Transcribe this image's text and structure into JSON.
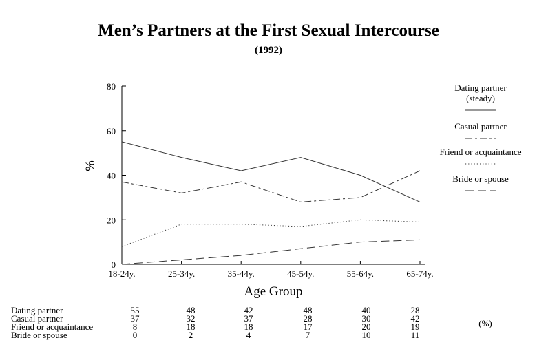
{
  "chart_data": {
    "type": "line",
    "title": "Men’s Partners at the First Sexual Intercourse",
    "subtitle": "(1992)",
    "xlabel": "Age Group",
    "ylabel": "%",
    "categories": [
      "18-24y.",
      "25-34y.",
      "35-44y.",
      "45-54y.",
      "55-64y.",
      "65-74y."
    ],
    "ylim": [
      0,
      80
    ],
    "yticks": [
      "0",
      "20",
      "40",
      "60",
      "80"
    ],
    "grid": false,
    "legend_position": "right",
    "series": [
      {
        "name": "Dating partner (steady)",
        "legend_lines": [
          "Dating partner",
          "(steady)"
        ],
        "dash": "solid",
        "values": [
          55,
          48,
          42,
          48,
          40,
          28
        ]
      },
      {
        "name": "Casual partner",
        "legend_lines": [
          "Casual partner"
        ],
        "dash": "dashdot",
        "values": [
          37,
          32,
          37,
          28,
          30,
          42
        ]
      },
      {
        "name": "Friend or acquaintance",
        "legend_lines": [
          "Friend or acquaintance"
        ],
        "dash": "dotted",
        "values": [
          8,
          18,
          18,
          17,
          20,
          19
        ]
      },
      {
        "name": "Bride or spouse",
        "legend_lines": [
          "Bride or spouse"
        ],
        "dash": "longdash",
        "values": [
          0,
          2,
          4,
          7,
          10,
          11
        ]
      }
    ],
    "table": {
      "row_labels": [
        "Dating partner",
        "Casual partner",
        "Friend or acquaintance",
        "Bride or spouse"
      ],
      "rows": [
        [
          "55",
          "48",
          "42",
          "48",
          "40",
          "28"
        ],
        [
          "37",
          "32",
          "37",
          "28",
          "30",
          "42"
        ],
        [
          "8",
          "18",
          "18",
          "17",
          "20",
          "19"
        ],
        [
          "0",
          "2",
          "4",
          "7",
          "10",
          "11"
        ]
      ],
      "unit": "(%)"
    }
  }
}
